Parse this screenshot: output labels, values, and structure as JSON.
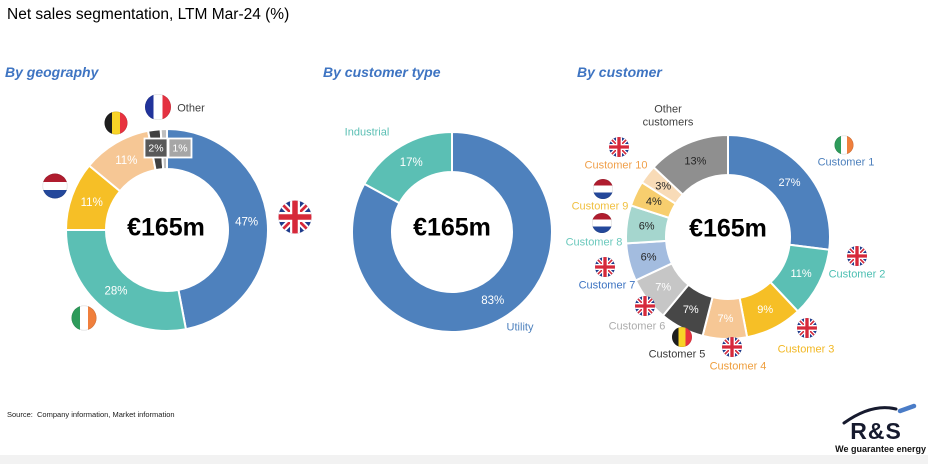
{
  "title": "Net sales segmentation, LTM Mar-24 (%)",
  "source": "Source:  Company information, Market information",
  "logo": {
    "text": "R&S",
    "tagline": "We guarantee energy"
  },
  "chart_data": [
    {
      "id": "by-geography",
      "type": "pie",
      "subtype": "donut",
      "title": "By geography",
      "center_label": "€165m",
      "slices": [
        {
          "flag": "uk",
          "value": 47,
          "pct_label": "47%",
          "color": "#4E81BD",
          "pct_color": "#FFFFFF"
        },
        {
          "flag": "ireland",
          "value": 28,
          "pct_label": "28%",
          "color": "#5BBFB4",
          "pct_color": "#FFFFFF"
        },
        {
          "flag": "netherlands",
          "value": 11,
          "pct_label": "11%",
          "color": "#F6BF26",
          "pct_color": "#FFFFFF"
        },
        {
          "flag": "belgium",
          "value": 11,
          "pct_label": "11%",
          "color": "#F6C795",
          "pct_color": "#FFFFFF"
        },
        {
          "flag": "france",
          "value": 2,
          "pct_label": "2%",
          "color": "#404040",
          "pct_color": "#FFFFFF",
          "callout": true,
          "callout_color": "#595959"
        },
        {
          "label": "Other",
          "label_color": "#404040",
          "value": 1,
          "pct_label": "1%",
          "color": "#BFBFBF",
          "pct_color": "#FFFFFF",
          "callout": true,
          "callout_color": "#A6A6A6"
        }
      ]
    },
    {
      "id": "by-customer-type",
      "type": "pie",
      "subtype": "donut",
      "title": "By customer type",
      "center_label": "€165m",
      "slices": [
        {
          "label": "Utility",
          "label_color": "#4E81BD",
          "value": 83,
          "pct_label": "83%",
          "color": "#4E81BD",
          "pct_color": "#FFFFFF"
        },
        {
          "label": "Industrial",
          "label_color": "#5BBFB4",
          "value": 17,
          "pct_label": "17%",
          "color": "#5BBFB4",
          "pct_color": "#FFFFFF"
        }
      ]
    },
    {
      "id": "by-customer",
      "type": "pie",
      "subtype": "donut",
      "title": "By customer",
      "center_label": "€165m",
      "slices": [
        {
          "label": "Customer 1",
          "label_color": "#4E81BD",
          "flag": "uk-none-ireland",
          "value": 27,
          "pct_label": "27%",
          "color": "#4E81BD",
          "pct_color": "#FFFFFF"
        },
        {
          "label": "Customer 2",
          "label_color": "#4CBFB2",
          "flag": "uk",
          "value": 11,
          "pct_label": "11%",
          "color": "#5BBFB4",
          "pct_color": "#FFFFFF"
        },
        {
          "label": "Customer 3",
          "label_color": "#F2B824",
          "flag": "uk",
          "value": 9,
          "pct_label": "9%",
          "color": "#F6BF26",
          "pct_color": "#FFFFFF"
        },
        {
          "label": "Customer 4",
          "label_color": "#EE9E3D",
          "flag": "uk",
          "value": 7,
          "pct_label": "7%",
          "color": "#F6C795",
          "pct_color": "#FFFFFF"
        },
        {
          "label": "Customer 5",
          "label_color": "#3A3A3A",
          "flag": "belgium",
          "value": 7,
          "pct_label": "7%",
          "color": "#474747",
          "pct_color": "#FFFFFF"
        },
        {
          "label": "Customer 6",
          "label_color": "#ACACAC",
          "flag": "uk",
          "value": 7,
          "pct_label": "7%",
          "color": "#C6C6C6",
          "pct_color": "#FFFFFF"
        },
        {
          "label": "Customer 7",
          "label_color": "#3E74C2",
          "flag": "uk",
          "value": 6,
          "pct_label": "6%",
          "color": "#A3BCDF",
          "pct_color": "#262626"
        },
        {
          "label": "Customer 8",
          "label_color": "#6CC9BD",
          "flag": "netherlands",
          "value": 6,
          "pct_label": "6%",
          "color": "#A5D6CE",
          "pct_color": "#262626"
        },
        {
          "label": "Customer 9",
          "label_color": "#F0C040",
          "flag": "netherlands",
          "value": 4,
          "pct_label": "4%",
          "color": "#F7CE6E",
          "pct_color": "#262626"
        },
        {
          "label": "Customer 10",
          "label_color": "#F0A04B",
          "flag": "uk",
          "value": 3,
          "pct_label": "3%",
          "color": "#F8DBB7",
          "pct_color": "#262626"
        },
        {
          "label": "Other customers",
          "label_color": "#404040",
          "value": 13,
          "pct_label": "13%",
          "color": "#8F8F8F",
          "pct_color": "#262626"
        }
      ]
    }
  ]
}
